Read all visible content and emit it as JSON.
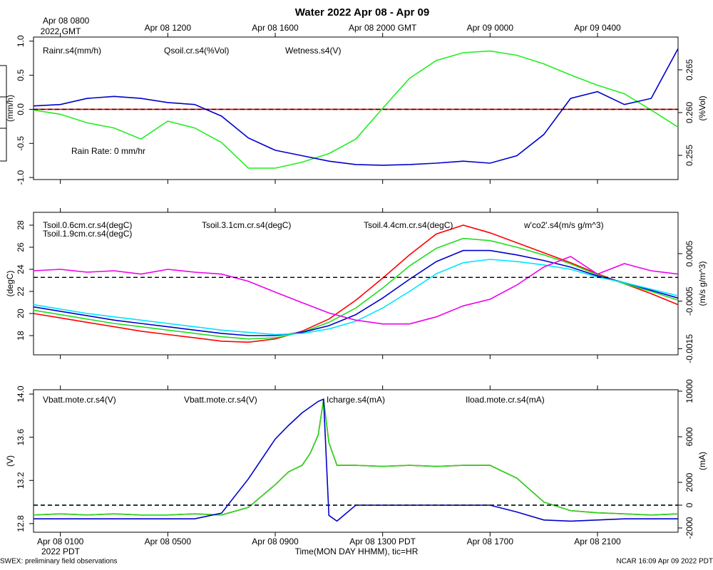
{
  "chart_data": [
    {
      "type": "line",
      "title": "Water 2022 Apr 08 - Apr 09",
      "xlim": [
        0,
        24
      ],
      "x2ticks": [
        {
          "value": 1,
          "label": "Apr 08 0800"
        },
        {
          "value": 5,
          "label": "Apr 08 1200"
        },
        {
          "value": 9,
          "label": "Apr 08 1600"
        },
        {
          "value": 13,
          "label": "Apr 08 2000 GMT"
        },
        {
          "value": 17,
          "label": "Apr 09 0000"
        },
        {
          "value": 21,
          "label": "Apr 09 0400"
        }
      ],
      "x2_note": "2022 GMT",
      "ylabel": "(mm/h)",
      "y2label": "(%Vol)",
      "ylim": [
        -1.03,
        1.06
      ],
      "yticks": [
        {
          "value": -1,
          "label": "-1.0"
        },
        {
          "value": -0.5,
          "label": "-0.5"
        },
        {
          "value": 0,
          "label": "0.0"
        },
        {
          "value": 0.5,
          "label": "0.5"
        },
        {
          "value": 1,
          "label": "1.0"
        }
      ],
      "y2lim": [
        0.25217,
        0.26883
      ],
      "y2ticks": [
        0.255,
        {
          "value": 0.26,
          "label": "0.260"
        },
        0.265
      ],
      "x": [
        0,
        1,
        2,
        3,
        4,
        5,
        6,
        7,
        8,
        9,
        10,
        11,
        12,
        13,
        14,
        15,
        16,
        17,
        18,
        19,
        20,
        21,
        22,
        23,
        24
      ],
      "series": [
        {
          "name": "Rainr.s4(mm/h)",
          "color": "#ff0000",
          "axis": "y",
          "values": [
            0,
            0,
            0,
            0,
            0,
            0,
            0,
            0,
            0,
            0,
            0,
            0,
            0,
            0,
            0,
            0,
            0,
            0,
            0,
            0,
            0,
            0,
            0,
            0,
            0
          ]
        },
        {
          "name": "Qsoil.cr.s4(%Vol)",
          "color": "#22ee22",
          "axis": "y2",
          "values": [
            0.2603,
            0.2598,
            0.2588,
            0.2582,
            0.2569,
            0.259,
            0.2582,
            0.2565,
            0.2535,
            0.2535,
            0.2542,
            0.2552,
            0.2569,
            0.2605,
            0.264,
            0.2661,
            0.267,
            0.2672,
            0.2667,
            0.2657,
            0.2644,
            0.2632,
            0.2622,
            0.2603,
            0.2583
          ]
        },
        {
          "name": "Wetness.s4(V)",
          "color": "#0000cc",
          "axis": "y",
          "values": [
            0.05,
            0.07,
            0.16,
            0.19,
            0.16,
            0.1,
            0.07,
            -0.1,
            -0.42,
            -0.6,
            -0.68,
            -0.76,
            -0.81,
            -0.82,
            -0.81,
            -0.79,
            -0.76,
            -0.79,
            -0.68,
            -0.37,
            0.16,
            0.26,
            0.07,
            0.16,
            0.89
          ]
        }
      ],
      "hlines": [
        {
          "axis": "y",
          "value": 0
        }
      ],
      "annotations": [
        {
          "text": "Rain Rate: 0 mm/hr",
          "color": "#ff0000"
        }
      ]
    },
    {
      "type": "line",
      "xlim": [
        0,
        24
      ],
      "ylabel": "(degC)",
      "y2label": "(m/s g/m^3)",
      "ylim": [
        16.26,
        29.16
      ],
      "yticks": [
        18,
        20,
        22,
        24,
        26,
        28
      ],
      "y2lim": [
        -0.00163,
        0.00137
      ],
      "y2ticks": [
        -0.0015,
        -0.0005,
        0.0005
      ],
      "x": [
        0,
        1,
        2,
        3,
        4,
        5,
        6,
        7,
        8,
        9,
        10,
        11,
        12,
        13,
        14,
        15,
        16,
        17,
        18,
        19,
        20,
        21,
        22,
        23,
        24
      ],
      "series": [
        {
          "name": "Tsoil.0.6cm.cr.s4(degC)",
          "color": "#ff0000",
          "axis": "y",
          "values": [
            20.0,
            19.6,
            19.2,
            18.8,
            18.4,
            18.1,
            17.8,
            17.5,
            17.4,
            17.7,
            18.4,
            19.5,
            21.2,
            23.2,
            25.3,
            27.2,
            28.0,
            27.3,
            26.4,
            25.5,
            24.6,
            23.6,
            22.7,
            21.8,
            20.8
          ]
        },
        {
          "name": "Tsoil.1.9cm.cr.s4(degC)",
          "color": "#22dd22",
          "axis": "y",
          "values": [
            20.3,
            19.9,
            19.5,
            19.1,
            18.8,
            18.5,
            18.2,
            17.9,
            17.7,
            17.8,
            18.3,
            19.2,
            20.5,
            22.3,
            24.3,
            25.9,
            26.8,
            26.6,
            26.0,
            25.3,
            24.5,
            23.5,
            22.7,
            22.0,
            21.2
          ]
        },
        {
          "name": "Tsoil.3.1cm.cr.s4(degC)",
          "color": "#0000cc",
          "axis": "y",
          "values": [
            20.6,
            20.2,
            19.8,
            19.4,
            19.1,
            18.8,
            18.5,
            18.2,
            18.0,
            18.0,
            18.3,
            18.9,
            19.9,
            21.4,
            23.1,
            24.7,
            25.7,
            25.7,
            25.3,
            24.8,
            24.2,
            23.4,
            22.8,
            22.1,
            21.4
          ]
        },
        {
          "name": "Tsoil.4.4cm.cr.s4(degC)",
          "color": "#00e5ff",
          "axis": "y",
          "values": [
            20.8,
            20.4,
            20.0,
            19.7,
            19.4,
            19.1,
            18.8,
            18.5,
            18.3,
            18.1,
            18.2,
            18.6,
            19.3,
            20.5,
            22.0,
            23.6,
            24.6,
            24.9,
            24.7,
            24.4,
            24.0,
            23.3,
            22.8,
            22.2,
            21.6
          ]
        },
        {
          "name": "w'co2'.s4(m/s g/m^3)",
          "color": "#ee00ee",
          "axis": "y2",
          "values": [
            0.00014,
            0.00017,
            0.00011,
            0.00014,
            7e-05,
            0.00017,
            0.00011,
            7e-05,
            -8e-05,
            -0.00031,
            -0.00053,
            -0.00075,
            -0.0009,
            -0.00098,
            -0.00098,
            -0.00083,
            -0.0006,
            -0.00046,
            -0.00016,
            0.00022,
            0.00044,
            7e-05,
            0.00029,
            0.00014,
            7e-05
          ]
        }
      ],
      "hlines": [
        {
          "axis": "y2",
          "value": 0
        }
      ]
    },
    {
      "type": "line",
      "xlim": [
        0,
        24
      ],
      "xticks": [
        {
          "value": 1,
          "label": "Apr 08 0100"
        },
        {
          "value": 5,
          "label": "Apr 08 0500"
        },
        {
          "value": 9,
          "label": "Apr 08 0900"
        },
        {
          "value": 13,
          "label": "Apr 08 1300 PDT"
        },
        {
          "value": 17,
          "label": "Apr 08 1700"
        },
        {
          "value": 21,
          "label": "Apr 08 2100"
        }
      ],
      "x_note": "2022 PDT",
      "xlabel": "Time(MON DAY HHMM), tic=HR",
      "ylabel": "(V)",
      "y2label": "(mA)",
      "ylim": [
        12.72,
        14.04
      ],
      "yticks": [
        12.8,
        13.2,
        13.6,
        {
          "value": 14,
          "label": "14.0"
        }
      ],
      "y2lim": [
        -2375,
        10125
      ],
      "y2ticks": [
        -2000,
        0,
        2000,
        6000,
        10000
      ],
      "x": [
        0,
        1,
        2,
        3,
        4,
        5,
        6,
        7,
        8,
        9,
        9.5,
        10,
        10.3,
        10.6,
        10.8,
        11,
        11.3,
        12,
        13,
        14,
        15,
        16,
        17,
        18,
        19,
        20,
        21,
        22,
        23,
        24
      ],
      "series": [
        {
          "name": "Vbatt.mote.cr.s4(V)",
          "color": "#ff0000",
          "axis": "y",
          "values": [
            12.88,
            12.89,
            12.88,
            12.89,
            12.88,
            12.88,
            12.89,
            12.88,
            12.95,
            13.16,
            13.28,
            13.34,
            13.45,
            13.62,
            13.95,
            13.55,
            13.34,
            13.34,
            13.33,
            13.34,
            13.33,
            13.34,
            13.34,
            13.22,
            13.0,
            12.92,
            12.9,
            12.89,
            12.88,
            12.89
          ]
        },
        {
          "name": "Vbatt.mote.cr.s4(V)",
          "color": "#22dd22",
          "axis": "y",
          "values": [
            12.88,
            12.89,
            12.88,
            12.89,
            12.88,
            12.88,
            12.89,
            12.88,
            12.95,
            13.16,
            13.28,
            13.34,
            13.45,
            13.62,
            13.95,
            13.55,
            13.34,
            13.34,
            13.33,
            13.34,
            13.33,
            13.34,
            13.34,
            13.22,
            13.0,
            12.92,
            12.9,
            12.89,
            12.88,
            12.89
          ]
        },
        {
          "name": "Icharge.s4(mA)",
          "color": "#0000cc",
          "axis": "y2",
          "values": [
            -1200,
            -1200,
            -1200,
            -1200,
            -1200,
            -1200,
            -1200,
            -700,
            2300,
            5800,
            7000,
            8100,
            8600,
            9100,
            9300,
            -900,
            -1400,
            0,
            0,
            0,
            0,
            0,
            0,
            -600,
            -1300,
            -1400,
            -1300,
            -1200,
            -1200,
            -1200
          ]
        },
        {
          "name": "Iload.mote.cr.s4(mA)",
          "color": "#00e5ff",
          "axis": "y2",
          "style": "dashed",
          "values": [
            0,
            0,
            0,
            0,
            0,
            0,
            0,
            0,
            0,
            0,
            0,
            0,
            0,
            0,
            0,
            0,
            0,
            0,
            0,
            0,
            0,
            0,
            0,
            0,
            0,
            0,
            0,
            0,
            0,
            0
          ]
        }
      ],
      "hlines": [
        {
          "axis": "y2",
          "value": 0
        }
      ]
    }
  ],
  "footer": {
    "left": "SWEX: preliminary field observations",
    "right": "NCAR 16:09 Apr 09 2022 PDT"
  }
}
